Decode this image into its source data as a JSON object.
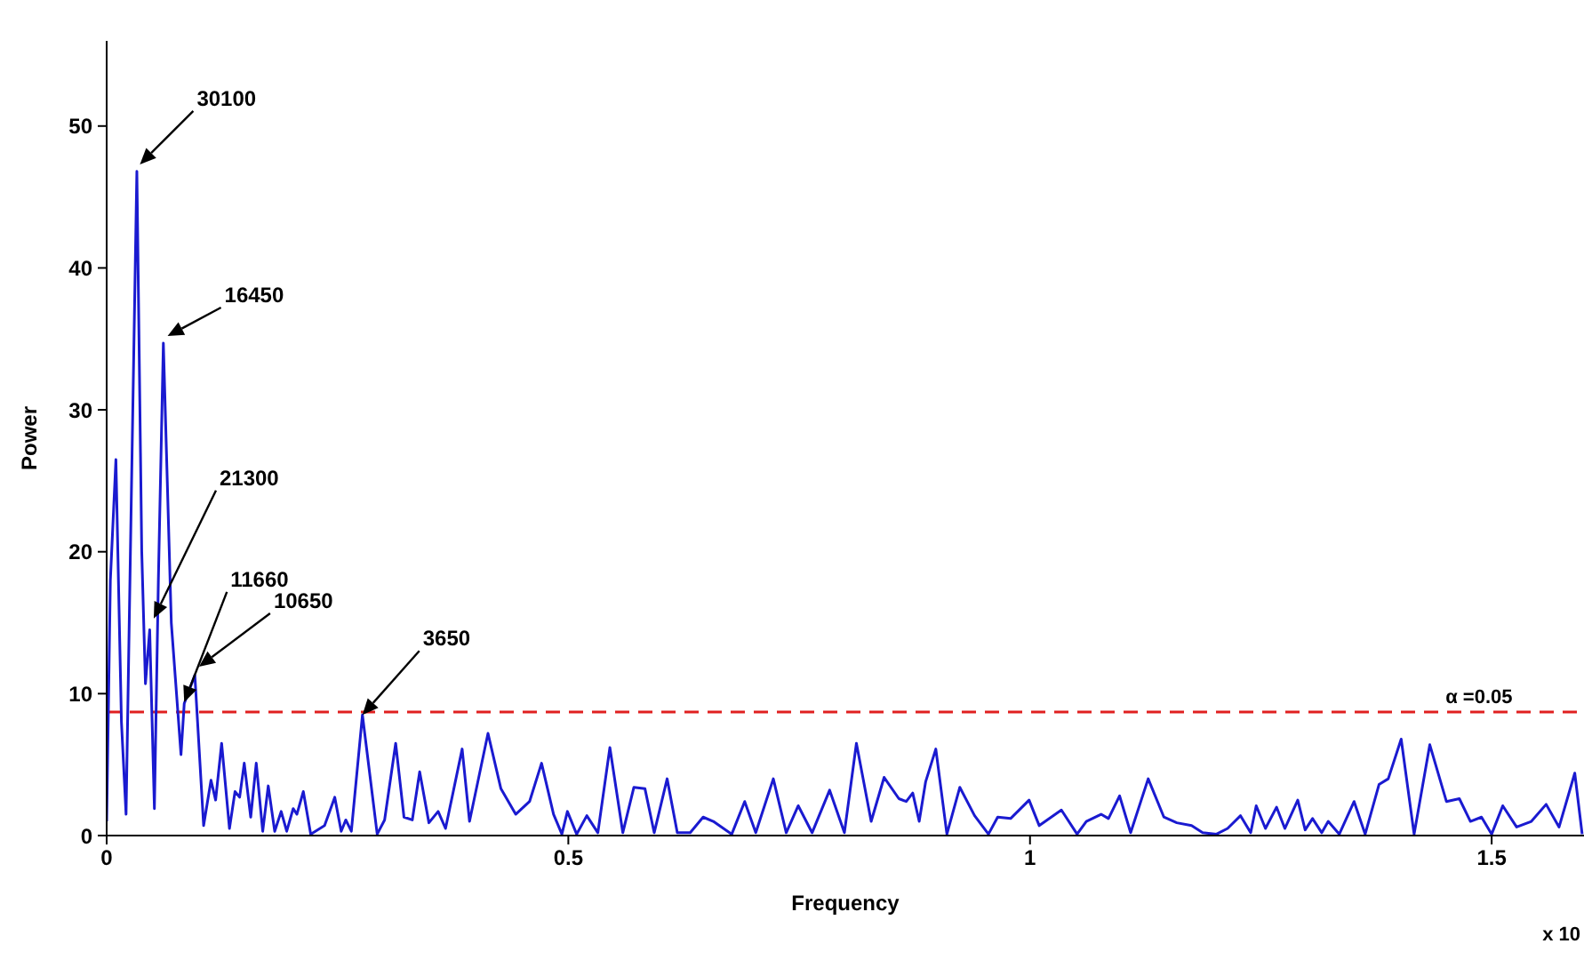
{
  "chart_data": {
    "type": "line",
    "xlabel": "Frequency",
    "ylabel": "Power",
    "x": [
      0,
      0.004,
      0.01,
      0.016,
      0.021,
      0.027,
      0.0327,
      0.038,
      0.042,
      0.0466,
      0.0517,
      0.056,
      0.0614,
      0.07,
      0.0805,
      0.084,
      0.0955,
      0.105,
      0.113,
      0.118,
      0.1245,
      0.133,
      0.139,
      0.144,
      0.149,
      0.156,
      0.162,
      0.169,
      0.175,
      0.182,
      0.189,
      0.195,
      0.202,
      0.206,
      0.213,
      0.221,
      0.236,
      0.247,
      0.254,
      0.259,
      0.265,
      0.277,
      0.293,
      0.301,
      0.313,
      0.322,
      0.331,
      0.339,
      0.349,
      0.359,
      0.367,
      0.385,
      0.393,
      0.413,
      0.427,
      0.443,
      0.458,
      0.471,
      0.484,
      0.493,
      0.499,
      0.509,
      0.52,
      0.532,
      0.545,
      0.559,
      0.571,
      0.583,
      0.593,
      0.607,
      0.618,
      0.632,
      0.646,
      0.657,
      0.677,
      0.691,
      0.703,
      0.722,
      0.736,
      0.749,
      0.764,
      0.783,
      0.799,
      0.812,
      0.828,
      0.842,
      0.858,
      0.866,
      0.873,
      0.88,
      0.887,
      0.898,
      0.91,
      0.924,
      0.94,
      0.955,
      0.965,
      0.979,
      0.999,
      1.01,
      1.034,
      1.051,
      1.061,
      1.077,
      1.085,
      1.097,
      1.109,
      1.128,
      1.145,
      1.159,
      1.175,
      1.187,
      1.202,
      1.214,
      1.228,
      1.239,
      1.245,
      1.255,
      1.267,
      1.276,
      1.29,
      1.298,
      1.306,
      1.316,
      1.323,
      1.335,
      1.351,
      1.363,
      1.378,
      1.388,
      1.402,
      1.416,
      1.433,
      1.451,
      1.465,
      1.477,
      1.489,
      1.5,
      1.512,
      1.527,
      1.543,
      1.559,
      1.573,
      1.59,
      1.598
    ],
    "series": [
      {
        "color": "#1a1ad0",
        "values": [
          1,
          18,
          26.5,
          8,
          1.5,
          25,
          46.8,
          20,
          10.7,
          14.5,
          1.9,
          18,
          34.7,
          15,
          5.7,
          9.3,
          11.3,
          0.7,
          3.9,
          2.5,
          6.5,
          0.5,
          3.1,
          2.7,
          5.1,
          1.3,
          5.1,
          0.3,
          3.5,
          0.3,
          1.7,
          0.3,
          1.9,
          1.5,
          3.1,
          0.1,
          0.7,
          2.7,
          0.3,
          1.1,
          0.3,
          8.5,
          0.1,
          1.1,
          6.5,
          1.3,
          1.1,
          4.5,
          0.9,
          1.7,
          0.5,
          6.1,
          1.0,
          7.2,
          3.3,
          1.5,
          2.4,
          5.1,
          1.5,
          0.1,
          1.7,
          0.1,
          1.4,
          0.2,
          6.2,
          0.2,
          3.4,
          3.3,
          0.2,
          4.0,
          0.2,
          0.2,
          1.3,
          1.0,
          0.1,
          2.4,
          0.2,
          4.0,
          0.2,
          2.1,
          0.2,
          3.2,
          0.2,
          6.5,
          1.0,
          4.1,
          2.6,
          2.4,
          3.0,
          1.0,
          3.8,
          6.1,
          0.1,
          3.4,
          1.4,
          0.1,
          1.3,
          1.2,
          2.5,
          0.7,
          1.8,
          0.1,
          1.0,
          1.5,
          1.2,
          2.8,
          0.2,
          4.0,
          1.3,
          0.9,
          0.7,
          0.2,
          0.1,
          0.5,
          1.4,
          0.2,
          2.1,
          0.5,
          2.0,
          0.5,
          2.5,
          0.4,
          1.2,
          0.2,
          1.0,
          0.1,
          2.4,
          0.1,
          3.6,
          4.0,
          6.8,
          0.1,
          6.4,
          2.4,
          2.6,
          1.0,
          1.3,
          0.1,
          2.1,
          0.6,
          1.0,
          2.2,
          0.6,
          4.4,
          0.1
        ]
      }
    ],
    "xlim": [
      0,
      1.6
    ],
    "xticks": [
      0,
      0.5,
      1,
      1.5
    ],
    "ylim": [
      0,
      56
    ],
    "yticks": [
      0,
      10,
      20,
      30,
      40,
      50
    ],
    "ref_lines": [
      {
        "axis": "y",
        "value": 8.7,
        "color": "#e02020",
        "line_style": "dashed"
      }
    ],
    "annotations": [
      {
        "text": "30100",
        "x": 0.036,
        "y": 47.3
      },
      {
        "text": "16450",
        "x": 0.066,
        "y": 35.2
      },
      {
        "text": "21300",
        "x": 0.051,
        "y": 15.3
      },
      {
        "text": "11660",
        "x": 0.084,
        "y": 9.4
      },
      {
        "text": "10650",
        "x": 0.1,
        "y": 11.9
      },
      {
        "text": "3650",
        "x": 0.277,
        "y": 8.5
      },
      {
        "text": "α =0.05",
        "x": 1.45,
        "y": 8.7
      },
      "x 10"
    ],
    "marker": "none",
    "line_style": "solid"
  }
}
